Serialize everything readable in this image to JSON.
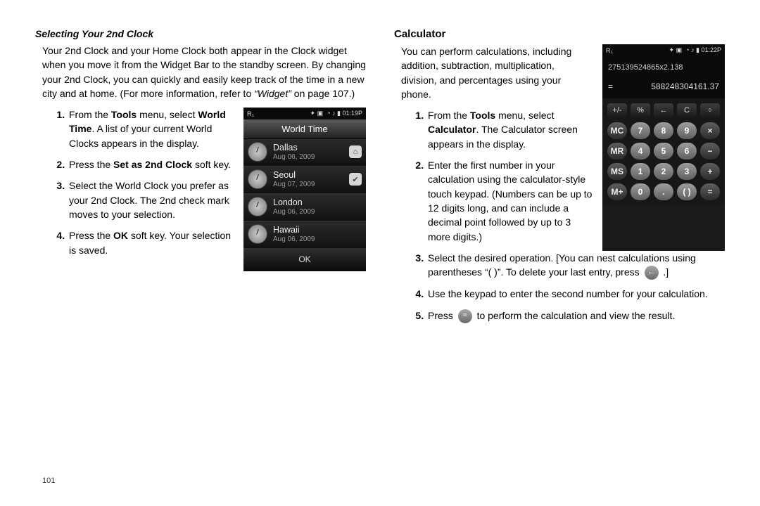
{
  "page_number": "101",
  "left": {
    "heading": "Selecting Your 2nd Clock",
    "intro_parts": {
      "a": "Your 2nd Clock and your Home Clock both appear in the Clock widget when you move it from the Widget Bar to the standby screen. By changing your 2nd Clock, you can quickly and easily keep track of the time in a new city and at home. (For more information, refer to ",
      "b_italic": "“Widget”",
      "c": "  on page 107.)"
    },
    "steps": {
      "s1a": "From the ",
      "s1b_bold": "Tools",
      "s1c": " menu, select ",
      "s1d_bold": "World Time",
      "s1e": ". A list of your current World Clocks appears in the display.",
      "s2a": "Press the ",
      "s2b_bold": "Set as 2nd Clock",
      "s2c": " soft key.",
      "s3": "Select the World Clock you prefer as your 2nd Clock. The 2nd check mark moves to your selection.",
      "s4a": "Press the ",
      "s4b_bold": "OK",
      "s4c": " soft key. Your selection is saved."
    },
    "phone": {
      "status_left": "R₁",
      "status_right": "01:19P",
      "title": "World Time",
      "ok": "OK",
      "items": [
        {
          "city": "Dallas",
          "date": "Aug 06, 2009",
          "badge": "⌂"
        },
        {
          "city": "Seoul",
          "date": "Aug 07, 2009",
          "badge": "✔"
        },
        {
          "city": "London",
          "date": "Aug 06, 2009",
          "badge": ""
        },
        {
          "city": "Hawaii",
          "date": "Aug 06, 2009",
          "badge": ""
        }
      ]
    }
  },
  "right": {
    "heading": "Calculator",
    "intro": "You can perform calculations, including addition, subtraction, multiplication, division, and percentages using your phone.",
    "steps": {
      "s1a": "From the ",
      "s1b_bold": "Tools",
      "s1c": " menu, select ",
      "s1d_bold": "Calculator",
      "s1e": ". The Calculator screen appears in the display.",
      "s2": "Enter the first number in your calculation using the calculator-style touch keypad. (Numbers can be up to 12 digits long, and can include a decimal point followed by up to 3 more digits.)",
      "s3a": "Select the desired operation. [You can nest calculations using parentheses  “( )”. To delete your last entry, press ",
      "s3_btn": "←",
      "s3b": " .]",
      "s4": "Use the keypad to enter the second number for your calculation.",
      "s5a": "Press ",
      "s5_btn": "=",
      "s5b": "  to perform the calculation and view the result."
    },
    "phone": {
      "status_left": "R₁",
      "status_right": "01:22P",
      "expr": "275139524865x2.138",
      "eq": "=",
      "result": "588248304161.37",
      "top_row": [
        "+/-",
        "%",
        "←",
        "C",
        "÷"
      ],
      "rows": [
        [
          "MC",
          "7",
          "8",
          "9",
          "×"
        ],
        [
          "MR",
          "4",
          "5",
          "6",
          "−"
        ],
        [
          "MS",
          "1",
          "2",
          "3",
          "+"
        ],
        [
          "M+",
          "0",
          ".",
          "( )",
          "="
        ]
      ]
    }
  }
}
